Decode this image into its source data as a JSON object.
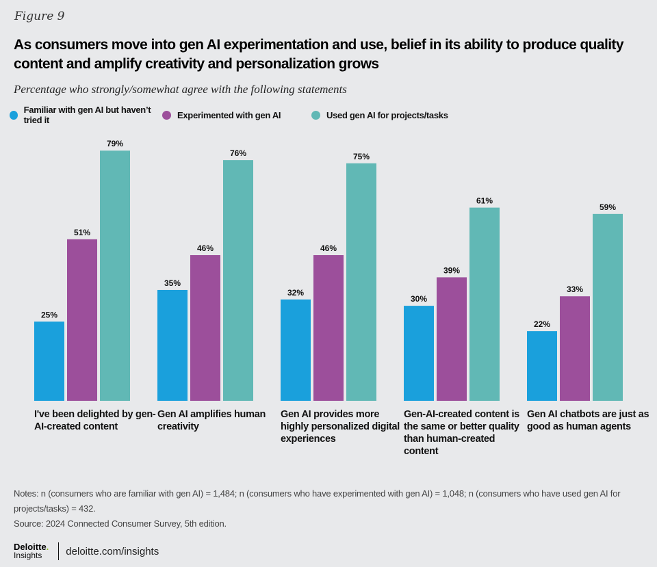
{
  "figure_label": "Figure 9",
  "footer": {
    "brand": "Deloitte",
    "brand_dot": ".",
    "brand_sub": "Insights",
    "url": "deloitte.com/insights"
  },
  "notes": {
    "line1": "Notes: n (consumers who are familiar with gen AI) = 1,484; n (consumers who have experimented with gen AI) = 1,048; n (consumers who have used gen AI for projects/tasks) = 432.",
    "source": "Source: 2024 Connected Consumer Survey, 5th edition."
  },
  "chart_data": {
    "type": "bar",
    "title": "As consumers move into gen AI experimentation and use, belief in its ability  to produce quality content and amplify creativity and personalization grows",
    "subtitle": "Percentage who strongly/somewhat agree with the following statements",
    "xlabel": "",
    "ylabel": "",
    "ylim": [
      0,
      100
    ],
    "grid": false,
    "legend_position": "top-left",
    "categories": [
      "I've been delighted by gen-AI-created content",
      "Gen AI amplifies human creativity",
      "Gen AI provides more highly personalized digital experiences",
      "Gen-AI-created content is the same or better quality than human-created content",
      "Gen AI chatbots are just as good as human agents"
    ],
    "series": [
      {
        "name": "Familiar with gen AI but haven’t tried it",
        "color": "#1aa0dc",
        "values": [
          25,
          35,
          32,
          30,
          22
        ]
      },
      {
        "name": "Experimented with gen AI",
        "color": "#9c4f9b",
        "values": [
          51,
          46,
          46,
          39,
          33
        ]
      },
      {
        "name": "Used gen AI for projects/tasks",
        "color": "#61b8b5",
        "values": [
          79,
          76,
          75,
          61,
          59
        ]
      }
    ],
    "value_suffix": "%"
  }
}
